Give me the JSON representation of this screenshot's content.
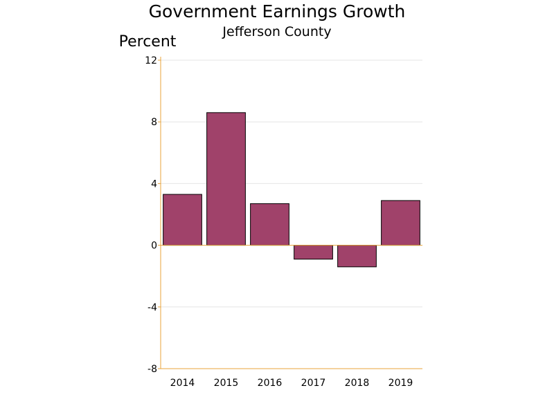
{
  "chart_data": {
    "type": "bar",
    "title": "Government Earnings Growth",
    "subtitle": "Jefferson County",
    "ylabel": "Percent",
    "xlabel": "",
    "categories": [
      "2014",
      "2015",
      "2016",
      "2017",
      "2018",
      "2019"
    ],
    "values": [
      3.3,
      8.6,
      2.7,
      -0.9,
      -1.4,
      2.9
    ],
    "ylim": [
      -8,
      12
    ],
    "yticks": [
      12,
      8,
      4,
      0,
      -4,
      -8
    ],
    "grid": true,
    "legend": "none",
    "colors": {
      "bar_fill": "#A0426A",
      "bar_stroke": "#000000",
      "axis": "#E8A33A",
      "grid": "#E6E6E6"
    }
  }
}
